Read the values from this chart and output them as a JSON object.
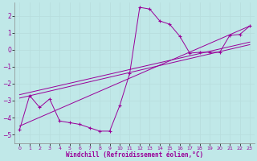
{
  "xlabel": "Windchill (Refroidissement éolien,°C)",
  "background_color": "#c0e8e8",
  "grid_color": "#aad8d8",
  "line_color": "#990099",
  "xlim": [
    -0.5,
    23.5
  ],
  "ylim": [
    -5.5,
    2.8
  ],
  "yticks": [
    -5,
    -4,
    -3,
    -2,
    -1,
    0,
    1,
    2
  ],
  "xticks": [
    0,
    1,
    2,
    3,
    4,
    5,
    6,
    7,
    8,
    9,
    10,
    11,
    12,
    13,
    14,
    15,
    16,
    17,
    18,
    19,
    20,
    21,
    22,
    23
  ],
  "series1_x": [
    0,
    1,
    2,
    3,
    4,
    5,
    6,
    7,
    8,
    9,
    10,
    11,
    12,
    13,
    14,
    15,
    16,
    17,
    18,
    19,
    20,
    21,
    22,
    23
  ],
  "series1_y": [
    -4.7,
    -2.7,
    -3.4,
    -2.9,
    -4.2,
    -4.3,
    -4.4,
    -4.6,
    -4.8,
    -4.8,
    -3.3,
    -1.4,
    2.5,
    2.4,
    1.7,
    1.5,
    0.8,
    -0.2,
    -0.15,
    -0.15,
    -0.15,
    0.85,
    0.9,
    1.4
  ],
  "line1_x": [
    0,
    23
  ],
  "line1_y": [
    -4.5,
    1.4
  ],
  "line2_x": [
    0,
    23
  ],
  "line2_y": [
    -2.85,
    0.3
  ],
  "line3_x": [
    0,
    23
  ],
  "line3_y": [
    -2.65,
    0.45
  ]
}
